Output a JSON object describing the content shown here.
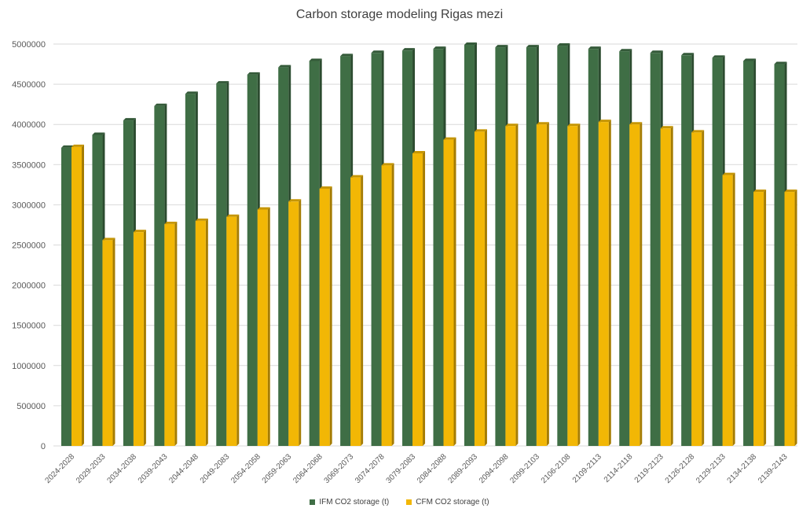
{
  "chart_data": {
    "type": "bar",
    "title": "Carbon storage modeling Rigas mezi",
    "xlabel": "",
    "ylabel": "",
    "ylim": [
      0,
      5000000
    ],
    "yticks": [
      0,
      500000,
      1000000,
      1500000,
      2000000,
      2500000,
      3000000,
      3500000,
      4000000,
      4500000,
      5000000
    ],
    "grid": true,
    "legend_position": "bottom",
    "categories": [
      "2024-2028",
      "2029-2033",
      "2034-2038",
      "2039-2043",
      "2044-2048",
      "2049-2083",
      "2054-2058",
      "2059-2063",
      "2064-2068",
      "3069-2073",
      "3074-2078",
      "3079-2083",
      "2084-2088",
      "2089-2093",
      "2094-2098",
      "2099-2103",
      "2106-2108",
      "2109-2113",
      "2114-2118",
      "2119-2123",
      "2126-2128",
      "2129-2133",
      "2134-2138",
      "2139-2143"
    ],
    "series": [
      {
        "name": "IFM CO2 storage (t)",
        "color": "#3f6e45",
        "values": [
          3710000,
          3870000,
          4050000,
          4230000,
          4380000,
          4510000,
          4620000,
          4710000,
          4790000,
          4850000,
          4890000,
          4920000,
          4940000,
          4990000,
          4960000,
          4960000,
          4980000,
          4940000,
          4910000,
          4890000,
          4860000,
          4830000,
          4790000,
          4750000
        ]
      },
      {
        "name": "CFM CO2 storage (t)",
        "color": "#f2b705",
        "values": [
          3720000,
          2560000,
          2660000,
          2760000,
          2800000,
          2850000,
          2940000,
          3040000,
          3200000,
          3340000,
          3490000,
          3640000,
          3810000,
          3910000,
          3980000,
          4000000,
          3980000,
          4030000,
          4000000,
          3950000,
          3900000,
          3370000,
          3160000,
          3160000
        ]
      }
    ]
  }
}
